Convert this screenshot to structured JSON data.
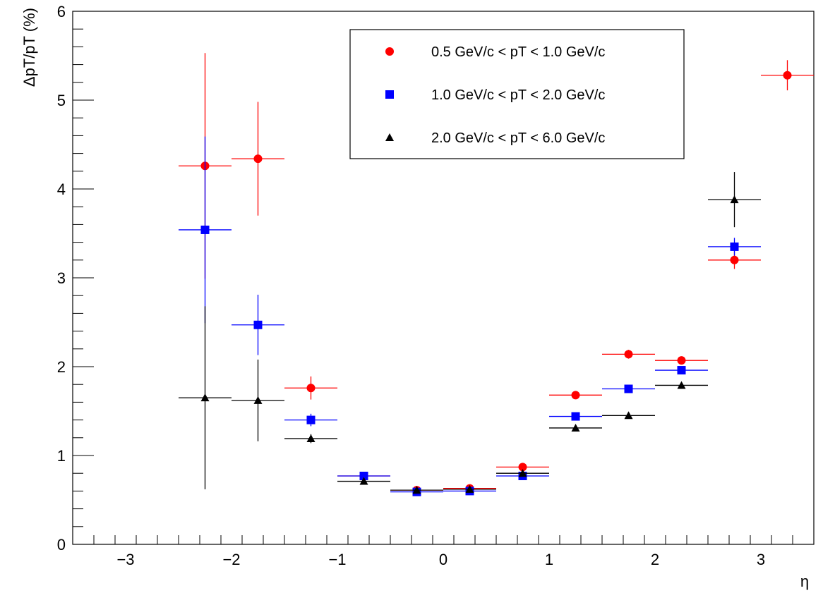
{
  "chart_data": {
    "type": "scatter",
    "title": "",
    "xlabel": "η",
    "ylabel": "ΔpT/pT (%)",
    "xlim": [
      -3.5,
      3.5
    ],
    "ylim": [
      0,
      6
    ],
    "x_ticks": [
      "−3",
      "−2",
      "−1",
      "0",
      "1",
      "2",
      "3"
    ],
    "y_ticks": [
      "0",
      "1",
      "2",
      "3",
      "4",
      "5",
      "6"
    ],
    "grid": false,
    "legend_position": "top-right",
    "series": [
      {
        "name": "0.5 GeV/c < pT < 1.0 GeV/c",
        "color": "#ff0000",
        "marker": "circle",
        "points": [
          {
            "x": -2.25,
            "xerr": 0.25,
            "y": 4.26,
            "yerr": 1.27
          },
          {
            "x": -1.75,
            "xerr": 0.25,
            "y": 4.34,
            "yerr": 0.64
          },
          {
            "x": -1.25,
            "xerr": 0.25,
            "y": 1.76,
            "yerr": 0.13
          },
          {
            "x": -0.75,
            "xerr": 0.25,
            "y": 0.77,
            "yerr": 0.02
          },
          {
            "x": -0.25,
            "xerr": 0.25,
            "y": 0.61,
            "yerr": 0.02
          },
          {
            "x": 0.25,
            "xerr": 0.25,
            "y": 0.63,
            "yerr": 0.02
          },
          {
            "x": 0.75,
            "xerr": 0.25,
            "y": 0.87,
            "yerr": 0.02
          },
          {
            "x": 1.25,
            "xerr": 0.25,
            "y": 1.68,
            "yerr": 0.03
          },
          {
            "x": 1.75,
            "xerr": 0.25,
            "y": 2.14,
            "yerr": 0.05
          },
          {
            "x": 2.25,
            "xerr": 0.25,
            "y": 2.07,
            "yerr": 0.04
          },
          {
            "x": 2.75,
            "xerr": 0.25,
            "y": 3.2,
            "yerr": 0.1
          },
          {
            "x": 3.25,
            "xerr": 0.25,
            "y": 5.28,
            "yerr": 0.17
          }
        ]
      },
      {
        "name": "1.0 GeV/c < pT < 2.0 GeV/c",
        "color": "#0000ff",
        "marker": "square",
        "points": [
          {
            "x": -2.25,
            "xerr": 0.25,
            "y": 3.54,
            "yerr": 1.05
          },
          {
            "x": -1.75,
            "xerr": 0.25,
            "y": 2.47,
            "yerr": 0.34
          },
          {
            "x": -1.25,
            "xerr": 0.25,
            "y": 1.4,
            "yerr": 0.07
          },
          {
            "x": -0.75,
            "xerr": 0.25,
            "y": 0.77,
            "yerr": 0.02
          },
          {
            "x": -0.25,
            "xerr": 0.25,
            "y": 0.59,
            "yerr": 0.02
          },
          {
            "x": 0.25,
            "xerr": 0.25,
            "y": 0.6,
            "yerr": 0.02
          },
          {
            "x": 0.75,
            "xerr": 0.25,
            "y": 0.77,
            "yerr": 0.02
          },
          {
            "x": 1.25,
            "xerr": 0.25,
            "y": 1.44,
            "yerr": 0.02
          },
          {
            "x": 1.75,
            "xerr": 0.25,
            "y": 1.75,
            "yerr": 0.03
          },
          {
            "x": 2.25,
            "xerr": 0.25,
            "y": 1.96,
            "yerr": 0.04
          },
          {
            "x": 2.75,
            "xerr": 0.25,
            "y": 3.35,
            "yerr": 0.1
          }
        ]
      },
      {
        "name": "2.0 GeV/c < pT < 6.0 GeV/c",
        "color": "#000000",
        "marker": "triangle",
        "points": [
          {
            "x": -2.25,
            "xerr": 0.25,
            "y": 1.65,
            "yerr": 1.03
          },
          {
            "x": -1.75,
            "xerr": 0.25,
            "y": 1.62,
            "yerr": 0.46
          },
          {
            "x": -1.25,
            "xerr": 0.25,
            "y": 1.19,
            "yerr": 0.05
          },
          {
            "x": -0.75,
            "xerr": 0.25,
            "y": 0.71,
            "yerr": 0.02
          },
          {
            "x": -0.25,
            "xerr": 0.25,
            "y": 0.61,
            "yerr": 0.02
          },
          {
            "x": 0.25,
            "xerr": 0.25,
            "y": 0.62,
            "yerr": 0.02
          },
          {
            "x": 0.75,
            "xerr": 0.25,
            "y": 0.8,
            "yerr": 0.02
          },
          {
            "x": 1.25,
            "xerr": 0.25,
            "y": 1.31,
            "yerr": 0.02
          },
          {
            "x": 1.75,
            "xerr": 0.25,
            "y": 1.45,
            "yerr": 0.02
          },
          {
            "x": 2.25,
            "xerr": 0.25,
            "y": 1.79,
            "yerr": 0.03
          },
          {
            "x": 2.75,
            "xerr": 0.25,
            "y": 3.88,
            "yerr": 0.31
          }
        ]
      }
    ]
  }
}
